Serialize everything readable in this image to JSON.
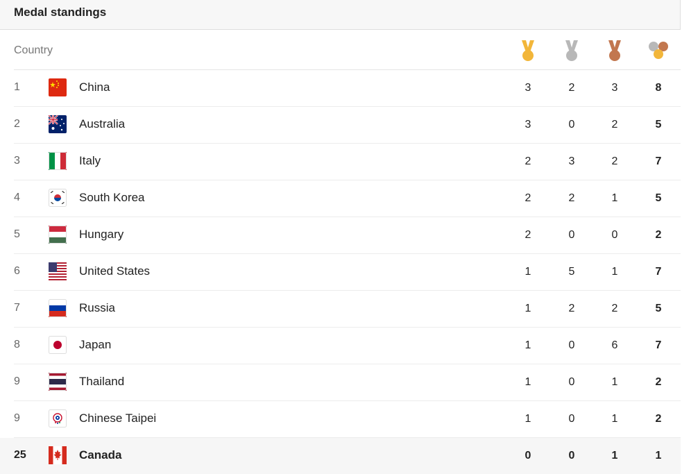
{
  "header": {
    "title": "Medal standings"
  },
  "columns": {
    "country": "Country",
    "gold_icon": "gold-medal-icon",
    "silver_icon": "silver-medal-icon",
    "bronze_icon": "bronze-medal-icon",
    "total_icon": "total-medals-icon"
  },
  "colors": {
    "gold": "#f2b63a",
    "silver": "#b8b8b8",
    "bronze": "#c2774f"
  },
  "rows": [
    {
      "rank": "1",
      "country": "China",
      "flag": "china-flag-icon",
      "gold": "3",
      "silver": "2",
      "bronze": "3",
      "total": "8"
    },
    {
      "rank": "2",
      "country": "Australia",
      "flag": "australia-flag-icon",
      "gold": "3",
      "silver": "0",
      "bronze": "2",
      "total": "5"
    },
    {
      "rank": "3",
      "country": "Italy",
      "flag": "italy-flag-icon",
      "gold": "2",
      "silver": "3",
      "bronze": "2",
      "total": "7"
    },
    {
      "rank": "4",
      "country": "South Korea",
      "flag": "south-korea-flag-icon",
      "gold": "2",
      "silver": "2",
      "bronze": "1",
      "total": "5"
    },
    {
      "rank": "5",
      "country": "Hungary",
      "flag": "hungary-flag-icon",
      "gold": "2",
      "silver": "0",
      "bronze": "0",
      "total": "2"
    },
    {
      "rank": "6",
      "country": "United States",
      "flag": "united-states-flag-icon",
      "gold": "1",
      "silver": "5",
      "bronze": "1",
      "total": "7"
    },
    {
      "rank": "7",
      "country": "Russia",
      "flag": "russia-flag-icon",
      "gold": "1",
      "silver": "2",
      "bronze": "2",
      "total": "5"
    },
    {
      "rank": "8",
      "country": "Japan",
      "flag": "japan-flag-icon",
      "gold": "1",
      "silver": "0",
      "bronze": "6",
      "total": "7"
    },
    {
      "rank": "9",
      "country": "Thailand",
      "flag": "thailand-flag-icon",
      "gold": "1",
      "silver": "0",
      "bronze": "1",
      "total": "2"
    },
    {
      "rank": "9",
      "country": "Chinese Taipei",
      "flag": "chinese-taipei-flag-icon",
      "gold": "1",
      "silver": "0",
      "bronze": "1",
      "total": "2"
    },
    {
      "rank": "25",
      "country": "Canada",
      "flag": "canada-flag-icon",
      "gold": "0",
      "silver": "0",
      "bronze": "1",
      "total": "1"
    }
  ]
}
